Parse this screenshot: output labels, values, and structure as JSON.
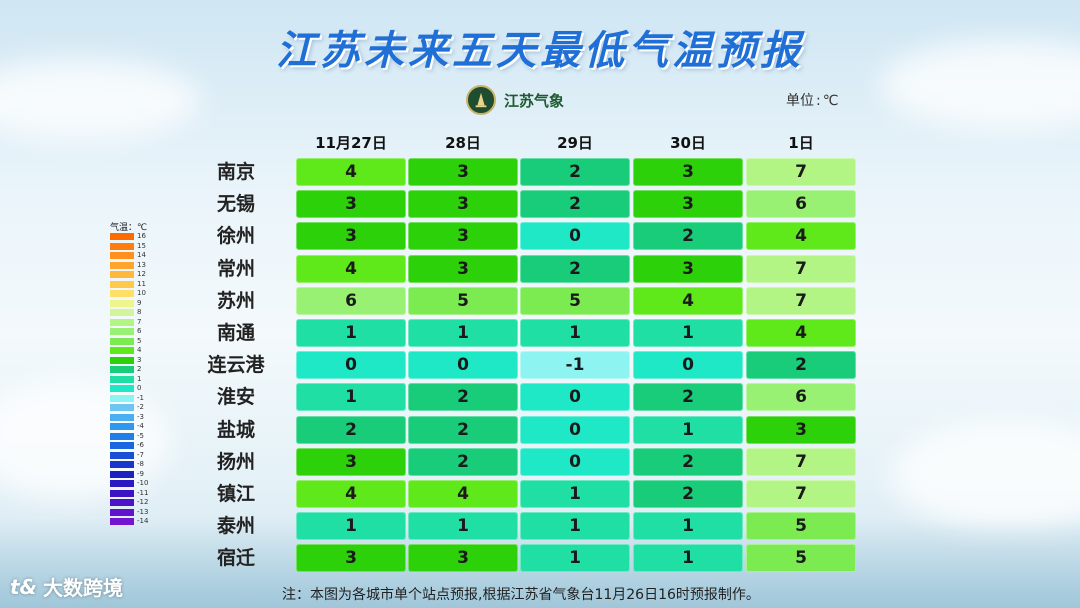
{
  "title": "江苏未来五天最低气温预报",
  "logo": {
    "text": "江苏气象",
    "icon": "weather-bureau-emblem-icon"
  },
  "unit": {
    "label": "单位",
    "value": "℃"
  },
  "columns": [
    "11月27日",
    "28日",
    "29日",
    "30日",
    "1日"
  ],
  "rows": [
    {
      "city": "南京",
      "values": [
        "4",
        "3",
        "2",
        "3",
        "7"
      ]
    },
    {
      "city": "无锡",
      "values": [
        "3",
        "3",
        "2",
        "3",
        "6"
      ]
    },
    {
      "city": "徐州",
      "values": [
        "3",
        "3",
        "0",
        "2",
        "4"
      ]
    },
    {
      "city": "常州",
      "values": [
        "4",
        "3",
        "2",
        "3",
        "7"
      ]
    },
    {
      "city": "苏州",
      "values": [
        "6",
        "5",
        "5",
        "4",
        "7"
      ]
    },
    {
      "city": "南通",
      "values": [
        "1",
        "1",
        "1",
        "1",
        "4"
      ]
    },
    {
      "city": "连云港",
      "values": [
        "0",
        "0",
        "-1",
        "0",
        "2"
      ]
    },
    {
      "city": "淮安",
      "values": [
        "1",
        "2",
        "0",
        "2",
        "6"
      ]
    },
    {
      "city": "盐城",
      "values": [
        "2",
        "2",
        "0",
        "1",
        "3"
      ]
    },
    {
      "city": "扬州",
      "values": [
        "3",
        "2",
        "0",
        "2",
        "7"
      ]
    },
    {
      "city": "镇江",
      "values": [
        "4",
        "4",
        "1",
        "2",
        "7"
      ]
    },
    {
      "city": "泰州",
      "values": [
        "1",
        "1",
        "1",
        "1",
        "5"
      ]
    },
    {
      "city": "宿迁",
      "values": [
        "3",
        "3",
        "1",
        "1",
        "5"
      ]
    }
  ],
  "legend": {
    "title": "气温：℃",
    "entries": [
      {
        "label": "16",
        "color": "#ff6a00"
      },
      {
        "label": "15",
        "color": "#ff7d10"
      },
      {
        "label": "14",
        "color": "#ff8f1f"
      },
      {
        "label": "13",
        "color": "#ffa52e"
      },
      {
        "label": "12",
        "color": "#ffb83c"
      },
      {
        "label": "11",
        "color": "#ffca4c"
      },
      {
        "label": "10",
        "color": "#ffe066"
      },
      {
        "label": "9",
        "color": "#eef58a"
      },
      {
        "label": "8",
        "color": "#d2f59a"
      },
      {
        "label": "7",
        "color": "#b2f585"
      },
      {
        "label": "6",
        "color": "#98f172"
      },
      {
        "label": "5",
        "color": "#7ceb52"
      },
      {
        "label": "4",
        "color": "#5fe81a"
      },
      {
        "label": "3",
        "color": "#2cd10a"
      },
      {
        "label": "2",
        "color": "#18cc7a"
      },
      {
        "label": "1",
        "color": "#20dfa4"
      },
      {
        "label": "0",
        "color": "#1fe8c6"
      },
      {
        "label": "-1",
        "color": "#8ef4f2"
      },
      {
        "label": "-2",
        "color": "#6fc5f2"
      },
      {
        "label": "-3",
        "color": "#4aaef0"
      },
      {
        "label": "-4",
        "color": "#2e97ee"
      },
      {
        "label": "-5",
        "color": "#1e7fe8"
      },
      {
        "label": "-6",
        "color": "#1a66e0"
      },
      {
        "label": "-7",
        "color": "#1a4ed6"
      },
      {
        "label": "-8",
        "color": "#1a36cc"
      },
      {
        "label": "-9",
        "color": "#1a22c0"
      },
      {
        "label": "-10",
        "color": "#2a18c0"
      },
      {
        "label": "-11",
        "color": "#3c14c4"
      },
      {
        "label": "-12",
        "color": "#4e12c8"
      },
      {
        "label": "-13",
        "color": "#6012cc"
      },
      {
        "label": "-14",
        "color": "#7414d0"
      }
    ]
  },
  "footnote": "注：本图为各城市单个站点预报,根据江苏省气象台11月26日16时预报制作。",
  "watermark": {
    "mark": "t&",
    "text": "大数跨境"
  }
}
